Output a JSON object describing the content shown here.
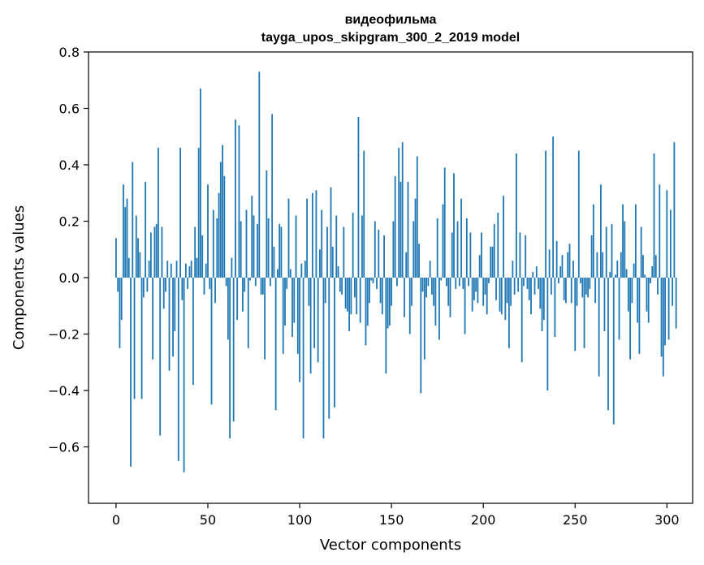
{
  "chart_data": {
    "type": "bar",
    "title": "видеофильма",
    "subtitle": "tayga_upos_skipgram_300_2_2019 model",
    "xlabel": "Vector components",
    "ylabel": "Components values",
    "xlim": [
      -15,
      314
    ],
    "ylim": [
      -0.8,
      0.8
    ],
    "xticks": [
      0,
      50,
      100,
      150,
      200,
      250,
      300
    ],
    "xtick_labels": [
      "0",
      "50",
      "100",
      "150",
      "200",
      "250",
      "300"
    ],
    "yticks": [
      0.8,
      0.6,
      0.4,
      0.2,
      0.0,
      -0.2,
      -0.4,
      -0.6
    ],
    "ytick_labels": [
      "0.8",
      "0.6",
      "0.4",
      "0.2",
      "0.0",
      "−0.2",
      "−0.4",
      "−0.6"
    ],
    "grid": false,
    "bar_color": "#1f77b4",
    "values": [
      0.14,
      -0.05,
      -0.25,
      -0.15,
      0.33,
      0.25,
      0.28,
      0.07,
      -0.67,
      0.41,
      -0.43,
      0.22,
      0.14,
      0.09,
      -0.43,
      -0.07,
      0.34,
      -0.05,
      0.06,
      0.16,
      -0.29,
      0.18,
      0.19,
      0.46,
      -0.56,
      0.18,
      -0.11,
      -0.05,
      0.06,
      -0.33,
      0.05,
      -0.28,
      -0.19,
      0.06,
      -0.65,
      0.46,
      -0.08,
      -0.69,
      0.05,
      -0.04,
      0.04,
      0.06,
      -0.38,
      0.18,
      0.07,
      0.46,
      0.67,
      0.15,
      -0.06,
      0.05,
      0.33,
      -0.04,
      -0.45,
      0.24,
      -0.09,
      0.21,
      0.3,
      0.41,
      0.47,
      0.36,
      -0.03,
      -0.22,
      -0.57,
      0.07,
      -0.51,
      0.56,
      -0.15,
      0.54,
      0.2,
      -0.12,
      -0.05,
      0.24,
      -0.25,
      -0.01,
      0.29,
      0.22,
      -0.03,
      0.19,
      0.73,
      -0.06,
      -0.06,
      -0.29,
      0.38,
      0.21,
      -0.03,
      0.58,
      0.11,
      -0.47,
      0.03,
      0.19,
      0.18,
      -0.27,
      -0.17,
      -0.04,
      0.28,
      0.03,
      -0.21,
      -0.16,
      0.22,
      -0.27,
      -0.37,
      0.05,
      -0.57,
      0.06,
      0.28,
      -0.1,
      -0.34,
      0.3,
      -0.25,
      0.31,
      -0.3,
      0.1,
      0.24,
      -0.57,
      -0.09,
      0.18,
      -0.5,
      0.32,
      0.11,
      -0.46,
      0.22,
      0.04,
      -0.05,
      -0.06,
      0.18,
      -0.11,
      -0.12,
      -0.19,
      -0.13,
      0.23,
      -0.07,
      -0.13,
      0.57,
      -0.16,
      0.22,
      0.45,
      -0.24,
      -0.17,
      -0.09,
      -0.01,
      -0.02,
      0.2,
      -0.04,
      0.17,
      -0.09,
      -0.13,
      0.15,
      -0.34,
      -0.18,
      -0.17,
      -0.1,
      0.2,
      0.36,
      -0.03,
      0.46,
      0.34,
      0.48,
      -0.14,
      0.09,
      0.34,
      -0.2,
      -0.1,
      0.2,
      0.28,
      0.43,
      0.12,
      -0.41,
      -0.05,
      -0.29,
      -0.07,
      -0.03,
      0.06,
      -0.06,
      -0.1,
      -0.17,
      0.21,
      -0.22,
      -0.01,
      0.26,
      0.39,
      -0.03,
      -0.1,
      -0.14,
      0.16,
      0.37,
      -0.04,
      0.2,
      -0.03,
      0.28,
      -0.04,
      -0.2,
      0.21,
      -0.03,
      0.16,
      -0.12,
      -0.08,
      -0.05,
      -0.09,
      0.08,
      0.16,
      -0.1,
      -0.06,
      -0.13,
      -0.02,
      0.11,
      0.11,
      0.19,
      -0.08,
      0.23,
      -0.12,
      -0.13,
      0.29,
      -0.15,
      -0.09,
      -0.25,
      -0.1,
      0.06,
      -0.06,
      0.44,
      -0.05,
      0.16,
      -0.3,
      -0.03,
      0.15,
      -0.04,
      -0.08,
      -0.13,
      0.02,
      -0.06,
      0.04,
      -0.04,
      -0.11,
      -0.19,
      -0.15,
      0.45,
      -0.4,
      0.1,
      -0.06,
      0.5,
      -0.21,
      0.13,
      -0.02,
      0.04,
      0.08,
      -0.08,
      -0.09,
      0.09,
      0.12,
      -0.09,
      0.06,
      -0.26,
      -0.1,
      0.45,
      -0.02,
      -0.07,
      -0.25,
      -0.06,
      -0.07,
      -0.04,
      0.15,
      0.26,
      -0.09,
      0.09,
      -0.35,
      0.33,
      0.09,
      -0.19,
      0.18,
      -0.47,
      0.02,
      0.19,
      -0.52,
      0.01,
      0.06,
      -0.22,
      0.09,
      0.26,
      0.2,
      0.03,
      -0.12,
      -0.29,
      -0.09,
      0.05,
      0.26,
      -0.16,
      -0.27,
      0.18,
      0.08,
      0.01,
      -0.12,
      -0.16,
      -0.02,
      0.04,
      0.44,
      0.08,
      -0.06,
      0.33,
      -0.28,
      -0.35,
      -0.24,
      0.31,
      -0.22,
      0.24,
      -0.1,
      0.48,
      -0.18
    ]
  }
}
